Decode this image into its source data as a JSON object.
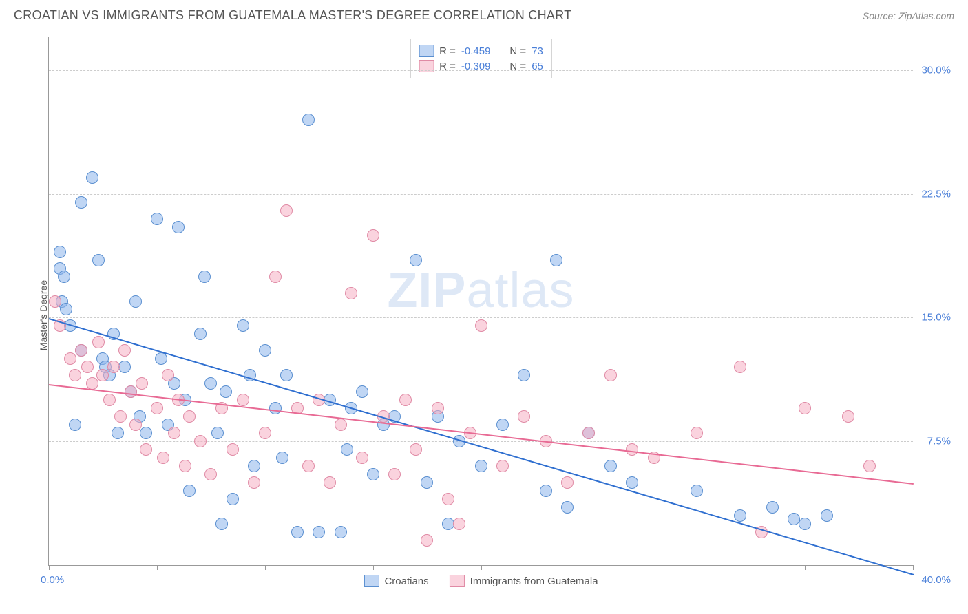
{
  "header": {
    "title": "CROATIAN VS IMMIGRANTS FROM GUATEMALA MASTER'S DEGREE CORRELATION CHART",
    "source": "Source: ZipAtlas.com"
  },
  "chart": {
    "type": "scatter",
    "ylabel": "Master's Degree",
    "watermark_a": "ZIP",
    "watermark_b": "atlas",
    "xlim": [
      0,
      40
    ],
    "ylim": [
      0,
      32
    ],
    "x_ticks": [
      0,
      5,
      10,
      15,
      20,
      25,
      30,
      35,
      40
    ],
    "y_ticks": [
      7.5,
      15.0,
      22.5,
      30.0
    ],
    "y_tick_labels": [
      "7.5%",
      "15.0%",
      "22.5%",
      "30.0%"
    ],
    "x_min_label": "0.0%",
    "x_max_label": "40.0%",
    "background_color": "#ffffff",
    "grid_color": "#cccccc",
    "axis_color": "#999999",
    "label_color": "#555555",
    "tick_label_color": "#4a7fd8",
    "marker_radius": 9,
    "marker_border_width": 1,
    "series": [
      {
        "name": "Croatians",
        "fill": "rgba(140,180,235,0.55)",
        "stroke": "#5a8fd0",
        "r_label": "R =",
        "r_value": "-0.459",
        "n_label": "N =",
        "n_value": "73",
        "trend": {
          "x1": 0,
          "y1": 15.0,
          "x2": 40,
          "y2": -0.5,
          "color": "#2f6fd0",
          "width": 2
        },
        "points": [
          [
            0.5,
            19.0
          ],
          [
            0.5,
            18.0
          ],
          [
            0.6,
            16.0
          ],
          [
            0.7,
            17.5
          ],
          [
            0.8,
            15.5
          ],
          [
            1.0,
            14.5
          ],
          [
            1.2,
            8.5
          ],
          [
            1.5,
            22.0
          ],
          [
            1.5,
            13.0
          ],
          [
            2.0,
            23.5
          ],
          [
            2.3,
            18.5
          ],
          [
            2.5,
            12.5
          ],
          [
            2.6,
            12.0
          ],
          [
            2.8,
            11.5
          ],
          [
            3.0,
            14.0
          ],
          [
            3.2,
            8.0
          ],
          [
            3.5,
            12.0
          ],
          [
            3.8,
            10.5
          ],
          [
            4.0,
            16.0
          ],
          [
            4.2,
            9.0
          ],
          [
            4.5,
            8.0
          ],
          [
            5.0,
            21.0
          ],
          [
            5.2,
            12.5
          ],
          [
            5.5,
            8.5
          ],
          [
            5.8,
            11.0
          ],
          [
            6.0,
            20.5
          ],
          [
            6.3,
            10.0
          ],
          [
            6.5,
            4.5
          ],
          [
            7.0,
            14.0
          ],
          [
            7.2,
            17.5
          ],
          [
            7.5,
            11.0
          ],
          [
            7.8,
            8.0
          ],
          [
            8.0,
            2.5
          ],
          [
            8.2,
            10.5
          ],
          [
            8.5,
            4.0
          ],
          [
            9.0,
            14.5
          ],
          [
            9.3,
            11.5
          ],
          [
            9.5,
            6.0
          ],
          [
            10.0,
            13.0
          ],
          [
            10.5,
            9.5
          ],
          [
            10.8,
            6.5
          ],
          [
            11.0,
            11.5
          ],
          [
            11.5,
            2.0
          ],
          [
            12.0,
            27.0
          ],
          [
            12.5,
            2.0
          ],
          [
            13.0,
            10.0
          ],
          [
            13.5,
            2.0
          ],
          [
            13.8,
            7.0
          ],
          [
            14.0,
            9.5
          ],
          [
            14.5,
            10.5
          ],
          [
            15.0,
            5.5
          ],
          [
            15.5,
            8.5
          ],
          [
            16.0,
            9.0
          ],
          [
            17.0,
            18.5
          ],
          [
            17.5,
            5.0
          ],
          [
            18.0,
            9.0
          ],
          [
            18.5,
            2.5
          ],
          [
            19.0,
            7.5
          ],
          [
            20.0,
            6.0
          ],
          [
            21.0,
            8.5
          ],
          [
            22.0,
            11.5
          ],
          [
            23.0,
            4.5
          ],
          [
            23.5,
            18.5
          ],
          [
            24.0,
            3.5
          ],
          [
            25.0,
            8.0
          ],
          [
            26.0,
            6.0
          ],
          [
            27.0,
            5.0
          ],
          [
            30.0,
            4.5
          ],
          [
            32.0,
            3.0
          ],
          [
            33.5,
            3.5
          ],
          [
            34.5,
            2.8
          ],
          [
            35.0,
            2.5
          ],
          [
            36.0,
            3.0
          ]
        ]
      },
      {
        "name": "Immigrants from Guatemala",
        "fill": "rgba(245,175,195,0.55)",
        "stroke": "#e08aa5",
        "r_label": "R =",
        "r_value": "-0.309",
        "n_label": "N =",
        "n_value": "65",
        "trend": {
          "x1": 0,
          "y1": 11.0,
          "x2": 40,
          "y2": 5.0,
          "color": "#e86a94",
          "width": 2
        },
        "points": [
          [
            0.3,
            16.0
          ],
          [
            0.5,
            14.5
          ],
          [
            1.0,
            12.5
          ],
          [
            1.2,
            11.5
          ],
          [
            1.5,
            13.0
          ],
          [
            1.8,
            12.0
          ],
          [
            2.0,
            11.0
          ],
          [
            2.3,
            13.5
          ],
          [
            2.5,
            11.5
          ],
          [
            2.8,
            10.0
          ],
          [
            3.0,
            12.0
          ],
          [
            3.3,
            9.0
          ],
          [
            3.5,
            13.0
          ],
          [
            3.8,
            10.5
          ],
          [
            4.0,
            8.5
          ],
          [
            4.3,
            11.0
          ],
          [
            4.5,
            7.0
          ],
          [
            5.0,
            9.5
          ],
          [
            5.3,
            6.5
          ],
          [
            5.5,
            11.5
          ],
          [
            5.8,
            8.0
          ],
          [
            6.0,
            10.0
          ],
          [
            6.3,
            6.0
          ],
          [
            6.5,
            9.0
          ],
          [
            7.0,
            7.5
          ],
          [
            7.5,
            5.5
          ],
          [
            8.0,
            9.5
          ],
          [
            8.5,
            7.0
          ],
          [
            9.0,
            10.0
          ],
          [
            9.5,
            5.0
          ],
          [
            10.0,
            8.0
          ],
          [
            10.5,
            17.5
          ],
          [
            11.0,
            21.5
          ],
          [
            11.5,
            9.5
          ],
          [
            12.0,
            6.0
          ],
          [
            12.5,
            10.0
          ],
          [
            13.0,
            5.0
          ],
          [
            13.5,
            8.5
          ],
          [
            14.0,
            16.5
          ],
          [
            14.5,
            6.5
          ],
          [
            15.0,
            20.0
          ],
          [
            15.5,
            9.0
          ],
          [
            16.0,
            5.5
          ],
          [
            16.5,
            10.0
          ],
          [
            17.0,
            7.0
          ],
          [
            17.5,
            1.5
          ],
          [
            18.0,
            9.5
          ],
          [
            18.5,
            4.0
          ],
          [
            19.0,
            2.5
          ],
          [
            19.5,
            8.0
          ],
          [
            20.0,
            14.5
          ],
          [
            21.0,
            6.0
          ],
          [
            22.0,
            9.0
          ],
          [
            23.0,
            7.5
          ],
          [
            24.0,
            5.0
          ],
          [
            25.0,
            8.0
          ],
          [
            26.0,
            11.5
          ],
          [
            27.0,
            7.0
          ],
          [
            28.0,
            6.5
          ],
          [
            30.0,
            8.0
          ],
          [
            32.0,
            12.0
          ],
          [
            33.0,
            2.0
          ],
          [
            35.0,
            9.5
          ],
          [
            37.0,
            9.0
          ],
          [
            38.0,
            6.0
          ]
        ]
      }
    ]
  }
}
